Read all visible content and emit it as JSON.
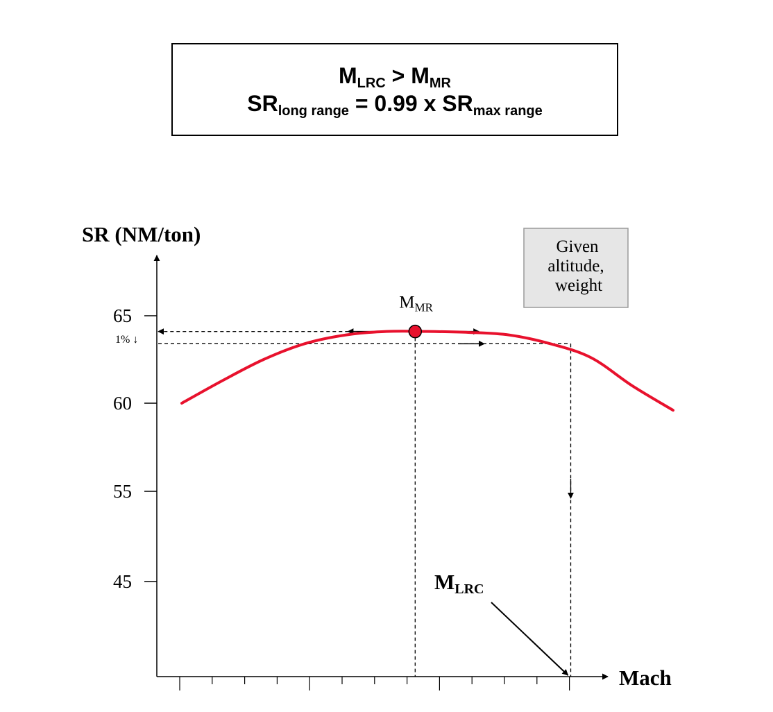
{
  "header": {
    "line1": {
      "m1": "M",
      "m1_sub": "LRC",
      "op": " > ",
      "m2": "M",
      "m2_sub": "MR"
    },
    "line2": {
      "sr1": "SR",
      "sr1_sub": "long range",
      "mid": " = 0.99 x ",
      "sr2": "SR",
      "sr2_sub": "max range"
    }
  },
  "chart_data": {
    "type": "line",
    "ylabel": "SR (NM/ton)",
    "xlabel": "Mach",
    "y_ticks": [
      65,
      60,
      55,
      45
    ],
    "x_tick_count": 13,
    "series": [
      {
        "color": "#e8112d",
        "points": [
          [
            0,
            60.0
          ],
          [
            1,
            61.3
          ],
          [
            2,
            62.5
          ],
          [
            3,
            63.4
          ],
          [
            4,
            63.9
          ],
          [
            5,
            64.1
          ],
          [
            6,
            64.1
          ],
          [
            7,
            64.05
          ],
          [
            8,
            63.9
          ],
          [
            9,
            63.4
          ],
          [
            10,
            62.6
          ],
          [
            11,
            61.0
          ],
          [
            12,
            59.6
          ]
        ]
      }
    ],
    "annotations": {
      "max_point_label": {
        "main": "M",
        "sub": "MR"
      },
      "max_point": {
        "x": 5.7,
        "y": 64.1
      },
      "one_percent_label": "1%",
      "one_percent_y": 63.4,
      "lrc_label": {
        "main": "M",
        "sub": "LRC"
      },
      "lrc_x": 9.5,
      "note_box": [
        "Given",
        "altitude,",
        "weight"
      ]
    }
  }
}
